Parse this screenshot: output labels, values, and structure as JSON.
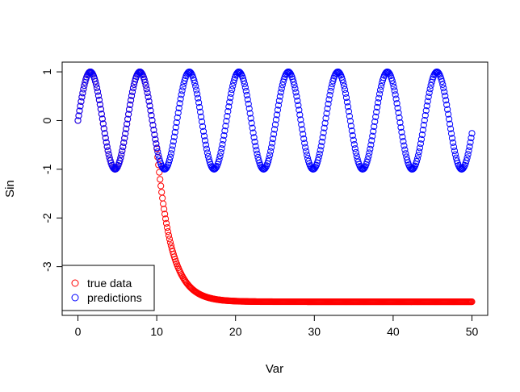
{
  "chart_data": {
    "type": "scatter",
    "title": "",
    "xlabel": "Var",
    "ylabel": "Sin",
    "xlim": [
      -2,
      52
    ],
    "ylim": [
      -4,
      1.2
    ],
    "x_ticks": [
      0,
      10,
      20,
      30,
      40,
      50
    ],
    "y_ticks": [
      -3,
      -2,
      -1,
      0,
      1
    ],
    "grid": false,
    "legend": {
      "position": "bottom-left",
      "entries": [
        {
          "label": "true data",
          "color": "#ff0000"
        },
        {
          "label": "predictions",
          "color": "#0000ff"
        }
      ]
    },
    "series": [
      {
        "name": "true data",
        "color": "#ff0000",
        "marker": "open-circle",
        "x_start": 0,
        "x_end": 50,
        "n_points": 500,
        "description_of_shape": "equals sin(x) up to x=10, then decays toward -3.7",
        "points": [
          [
            0,
            0.0
          ],
          [
            1,
            0.84
          ],
          [
            2,
            0.91
          ],
          [
            3,
            0.14
          ],
          [
            4,
            -0.76
          ],
          [
            5,
            -0.96
          ],
          [
            6,
            -0.28
          ],
          [
            7,
            0.66
          ],
          [
            8,
            0.99
          ],
          [
            9,
            0.41
          ],
          [
            10,
            -0.54
          ],
          [
            10.5,
            -0.95
          ],
          [
            11,
            -1.6
          ],
          [
            12,
            -2.35
          ],
          [
            13,
            -2.85
          ],
          [
            14,
            -3.15
          ],
          [
            15,
            -3.35
          ],
          [
            17,
            -3.5
          ],
          [
            20,
            -3.6
          ],
          [
            25,
            -3.68
          ],
          [
            30,
            -3.71
          ],
          [
            40,
            -3.72
          ],
          [
            50,
            -3.72
          ]
        ]
      },
      {
        "name": "predictions",
        "color": "#0000ff",
        "marker": "open-circle",
        "x_start": 0,
        "x_end": 50,
        "n_points": 500,
        "description_of_shape": "follows sin(x) across the whole range",
        "points": [
          [
            0,
            0.0
          ],
          [
            1.57,
            1.0
          ],
          [
            4.71,
            -1.0
          ],
          [
            7.85,
            1.0
          ],
          [
            10.99,
            -1.0
          ],
          [
            14.14,
            1.0
          ],
          [
            17.28,
            -1.0
          ],
          [
            20.42,
            1.0
          ],
          [
            23.56,
            -1.0
          ],
          [
            26.7,
            1.0
          ],
          [
            29.85,
            -1.0
          ],
          [
            32.99,
            1.0
          ],
          [
            36.13,
            -1.0
          ],
          [
            39.27,
            1.0
          ],
          [
            42.41,
            -1.0
          ],
          [
            45.55,
            1.0
          ],
          [
            48.69,
            -1.0
          ],
          [
            50,
            -0.26
          ]
        ]
      }
    ]
  }
}
